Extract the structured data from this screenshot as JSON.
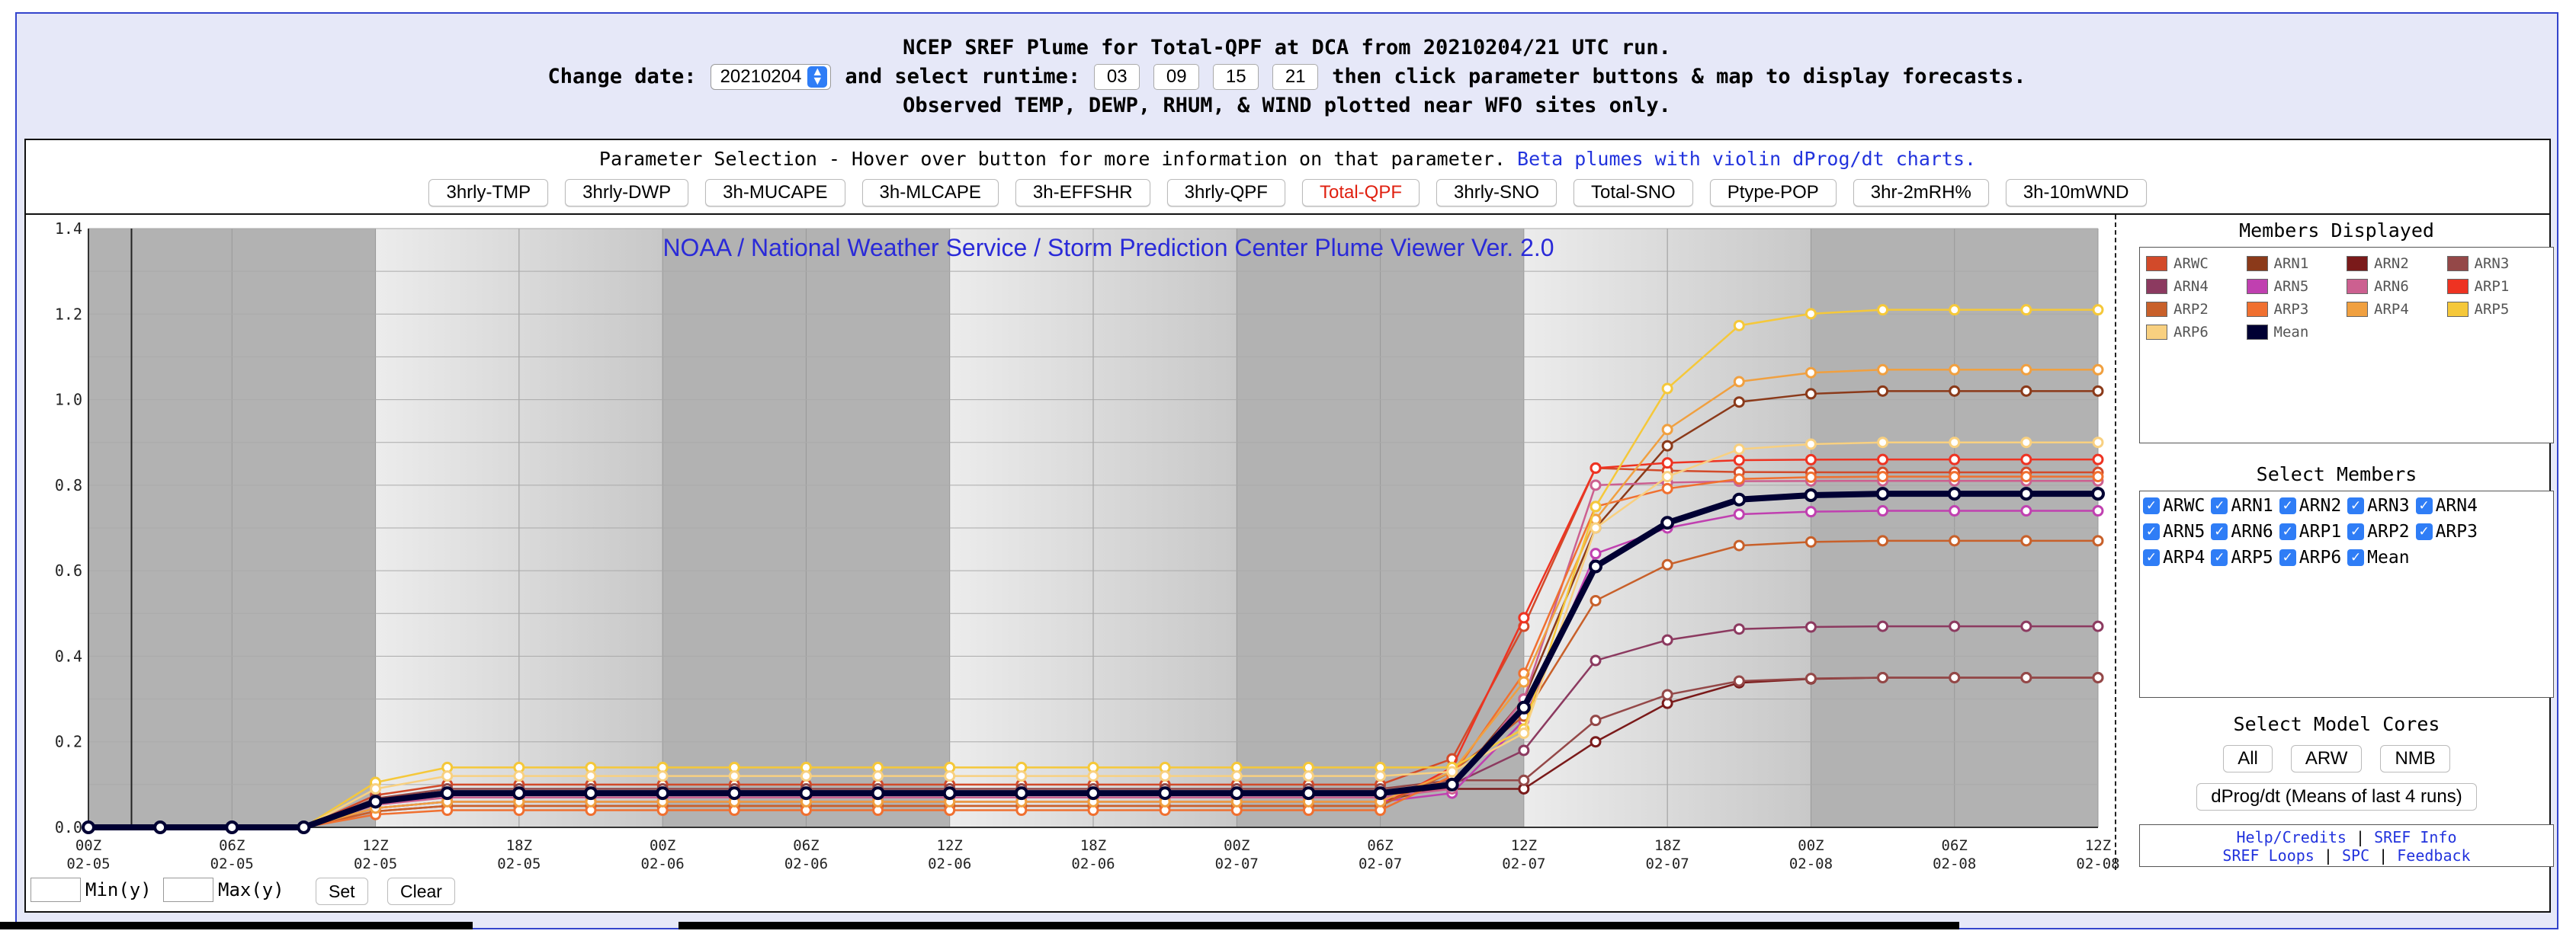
{
  "header": {
    "line1": "NCEP SREF Plume for Total-QPF at DCA from 20210204/21 UTC run.",
    "change_date_label": "Change date:",
    "date_value": "20210204",
    "runtime_label": "and select runtime:",
    "runtimes": [
      "03",
      "09",
      "15",
      "21"
    ],
    "after_runtime": "then click parameter buttons & map to display forecasts.",
    "line3": "Observed TEMP, DEWP, RHUM, & WIND plotted near WFO sites only."
  },
  "params": {
    "title": "Parameter Selection - Hover over button for more information on that parameter.",
    "beta_link": "Beta plumes with violin dProg/dt charts.",
    "buttons": [
      "3hrly-TMP",
      "3hrly-DWP",
      "3h-MUCAPE",
      "3h-MLCAPE",
      "3h-EFFSHR",
      "3hrly-QPF",
      "Total-QPF",
      "3hrly-SNO",
      "Total-SNO",
      "Ptype-POP",
      "3hr-2mRH%",
      "3h-10mWND"
    ],
    "active": "Total-QPF"
  },
  "chart_data": {
    "type": "line",
    "title": "NOAA / National Weather Service / Storm Prediction Center Plume Viewer Ver. 2.0",
    "xlabel": "",
    "ylabel": "",
    "ylim": [
      0,
      1.4
    ],
    "yticks": [
      "0.0",
      "0.2",
      "0.4",
      "0.6",
      "0.8",
      "1.0",
      "1.2",
      "1.4"
    ],
    "x_hours": [
      0,
      3,
      6,
      9,
      12,
      15,
      18,
      21,
      24,
      27,
      30,
      33,
      36,
      39,
      42,
      45,
      48,
      51,
      54,
      57,
      60,
      63,
      66,
      69,
      72,
      75,
      78,
      81,
      84
    ],
    "x_tick_labels": [
      [
        "00Z",
        "02-05"
      ],
      [
        "06Z",
        "02-05"
      ],
      [
        "12Z",
        "02-05"
      ],
      [
        "18Z",
        "02-05"
      ],
      [
        "00Z",
        "02-06"
      ],
      [
        "06Z",
        "02-06"
      ],
      [
        "12Z",
        "02-06"
      ],
      [
        "18Z",
        "02-06"
      ],
      [
        "00Z",
        "02-07"
      ],
      [
        "06Z",
        "02-07"
      ],
      [
        "12Z",
        "02-07"
      ],
      [
        "18Z",
        "02-07"
      ],
      [
        "00Z",
        "02-08"
      ],
      [
        "06Z",
        "02-08"
      ],
      [
        "12Z",
        "02-08"
      ]
    ],
    "series": [
      {
        "name": "ARWC",
        "color": "#d24a2a",
        "final": 0.83,
        "base": 0.1,
        "t57": 0.16,
        "t60": 0.47,
        "t63": 0.84
      },
      {
        "name": "ARN1",
        "color": "#8b3a1a",
        "final": 1.02,
        "base": 0.06,
        "t57": 0.1,
        "t60": 0.3,
        "t63": 0.7
      },
      {
        "name": "ARN2",
        "color": "#7a1a1a",
        "final": 0.35,
        "base": 0.08,
        "t57": 0.09,
        "t60": 0.09,
        "t63": 0.2
      },
      {
        "name": "ARN3",
        "color": "#944848",
        "final": 0.35,
        "base": 0.09,
        "t57": 0.11,
        "t60": 0.11,
        "t63": 0.25
      },
      {
        "name": "ARN4",
        "color": "#8c3a60",
        "final": 0.47,
        "base": 0.08,
        "t57": 0.1,
        "t60": 0.18,
        "t63": 0.39
      },
      {
        "name": "ARN5",
        "color": "#c040b0",
        "final": 0.74,
        "base": 0.06,
        "t57": 0.08,
        "t60": 0.25,
        "t63": 0.64
      },
      {
        "name": "ARN6",
        "color": "#cc6090",
        "final": 0.81,
        "base": 0.07,
        "t57": 0.09,
        "t60": 0.3,
        "t63": 0.8
      },
      {
        "name": "ARP1",
        "color": "#ee3322",
        "final": 0.86,
        "base": 0.05,
        "t57": 0.14,
        "t60": 0.49,
        "t63": 0.84
      },
      {
        "name": "ARP2",
        "color": "#c8602a",
        "final": 0.67,
        "base": 0.05,
        "t57": 0.13,
        "t60": 0.26,
        "t63": 0.53
      },
      {
        "name": "ARP3",
        "color": "#f07030",
        "final": 0.82,
        "base": 0.04,
        "t57": 0.12,
        "t60": 0.36,
        "t63": 0.75
      },
      {
        "name": "ARP4",
        "color": "#f0a040",
        "final": 1.07,
        "base": 0.06,
        "t57": 0.13,
        "t60": 0.34,
        "t63": 0.72
      },
      {
        "name": "ARP5",
        "color": "#f5c83a",
        "final": 1.21,
        "base": 0.14,
        "t57": 0.14,
        "t60": 0.23,
        "t63": 0.75
      },
      {
        "name": "ARP6",
        "color": "#f8d080",
        "final": 0.9,
        "base": 0.12,
        "t57": 0.13,
        "t60": 0.22,
        "t63": 0.7
      },
      {
        "name": "Mean",
        "color": "#000033",
        "final": 0.78,
        "base": 0.08,
        "t57": 0.1,
        "t60": 0.28,
        "t63": 0.61
      }
    ]
  },
  "legend": {
    "title": "Members Displayed",
    "items": [
      {
        "name": "ARWC",
        "color": "#d24a2a"
      },
      {
        "name": "ARN1",
        "color": "#8b3a1a"
      },
      {
        "name": "ARN2",
        "color": "#7a1a1a"
      },
      {
        "name": "ARN3",
        "color": "#944848"
      },
      {
        "name": "ARN4",
        "color": "#8c3a60"
      },
      {
        "name": "ARN5",
        "color": "#c040b0"
      },
      {
        "name": "ARN6",
        "color": "#cc6090"
      },
      {
        "name": "ARP1",
        "color": "#ee3322"
      },
      {
        "name": "ARP2",
        "color": "#c8602a"
      },
      {
        "name": "ARP3",
        "color": "#f07030"
      },
      {
        "name": "ARP4",
        "color": "#f0a040"
      },
      {
        "name": "ARP5",
        "color": "#f5c83a"
      },
      {
        "name": "ARP6",
        "color": "#f8d080"
      },
      {
        "name": "Mean",
        "color": "#000033"
      }
    ]
  },
  "select_members": {
    "title": "Select Members",
    "items": [
      "ARWC",
      "ARN1",
      "ARN2",
      "ARN3",
      "ARN4",
      "ARN5",
      "ARN6",
      "ARP1",
      "ARP2",
      "ARP3",
      "ARP4",
      "ARP5",
      "ARP6",
      "Mean"
    ]
  },
  "model_cores": {
    "title": "Select Model Cores",
    "buttons": [
      "All",
      "ARW",
      "NMB"
    ],
    "dprog": "dProg/dt (Means of last 4 runs)"
  },
  "links": {
    "help": "Help/Credits",
    "sref_info": "SREF Info",
    "sref_loops": "SREF Loops",
    "spc": "SPC",
    "feedback": "Feedback",
    "sep": "|"
  },
  "bottom": {
    "min_label": "Min(y)",
    "max_label": "Max(y)",
    "set": "Set",
    "clear": "Clear"
  }
}
